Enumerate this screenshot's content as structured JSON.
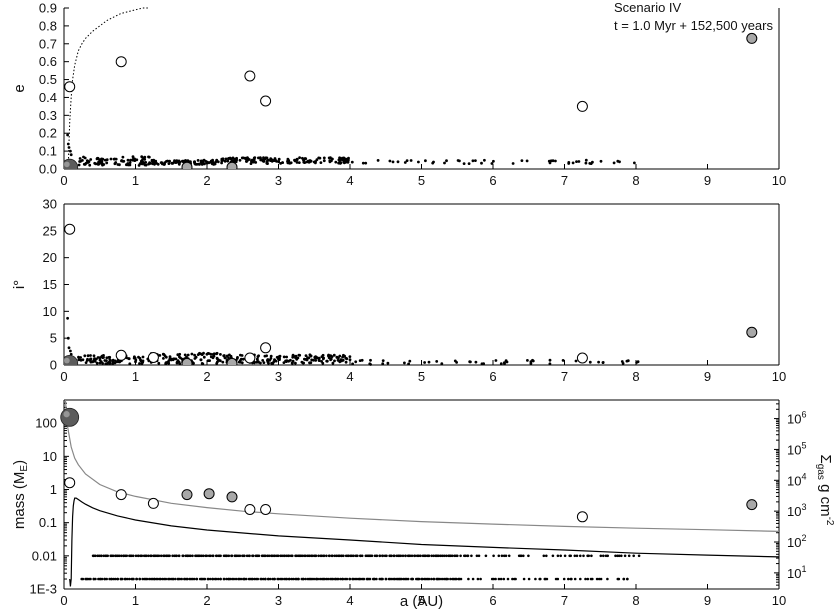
{
  "annotation": {
    "line1": "Scenario IV",
    "line2": "t = 1.0 Myr + 152,500 years"
  },
  "colors": {
    "axis": "#000000",
    "open_marker_fill": "#ffffff",
    "grey_marker_fill": "#a8a8a8",
    "dots": "#000000",
    "sigma_curve": "#888888",
    "mass_curve": "#000000"
  },
  "chart_data": [
    {
      "id": "e-panel",
      "type": "scatter",
      "ylabel": "e",
      "xlim": [
        0,
        10
      ],
      "ylim": [
        0,
        0.9
      ],
      "xticks": [
        0,
        1,
        2,
        3,
        4,
        5,
        6,
        7,
        8,
        9,
        10
      ],
      "yticks": [
        "0.0",
        "0.1",
        "0.2",
        "0.3",
        "0.4",
        "0.5",
        "0.6",
        "0.7",
        "0.8",
        "0.9"
      ],
      "ytick_values": [
        0,
        0.1,
        0.2,
        0.3,
        0.4,
        0.5,
        0.6,
        0.7,
        0.8,
        0.9
      ],
      "dotted_curve": {
        "x": [
          0.06,
          0.065,
          0.07,
          0.08,
          0.09,
          0.1,
          0.12,
          0.15,
          0.2,
          0.25,
          0.3,
          0.4,
          0.5,
          0.6,
          0.7,
          0.8,
          0.9,
          1.0,
          1.1,
          1.2
        ],
        "y": [
          0.0,
          0.08,
          0.15,
          0.26,
          0.33,
          0.4,
          0.5,
          0.58,
          0.66,
          0.7,
          0.73,
          0.77,
          0.8,
          0.83,
          0.85,
          0.87,
          0.88,
          0.89,
          0.9,
          0.9
        ]
      },
      "open_bodies": [
        {
          "x": 0.08,
          "y": 0.46
        },
        {
          "x": 0.8,
          "y": 0.6
        },
        {
          "x": 2.6,
          "y": 0.52
        },
        {
          "x": 2.82,
          "y": 0.38
        },
        {
          "x": 7.25,
          "y": 0.35
        }
      ],
      "grey_bodies": [
        {
          "x": 9.62,
          "y": 0.73
        },
        {
          "x": 1.72,
          "y": 0.01
        },
        {
          "x": 2.35,
          "y": 0.01
        }
      ],
      "central_body": {
        "x": 0.08,
        "y": 0.01
      },
      "planetesimal_swarm": {
        "segments": [
          {
            "x_from": 0.2,
            "x_to": 1.2,
            "y_from": 0.02,
            "y_to": 0.07
          },
          {
            "x_from": 1.2,
            "x_to": 2.2,
            "y_from": 0.025,
            "y_to": 0.05
          },
          {
            "x_from": 2.2,
            "x_to": 4.0,
            "y_from": 0.03,
            "y_to": 0.065
          },
          {
            "x_from": 4.0,
            "x_to": 8.1,
            "y_from": 0.03,
            "y_to": 0.05
          }
        ],
        "inner_scatter": {
          "x": [
            0.05,
            0.06,
            0.07,
            0.09,
            0.1
          ],
          "y": [
            0.19,
            0.14,
            0.12,
            0.1,
            0.08
          ]
        }
      }
    },
    {
      "id": "i-panel",
      "type": "scatter",
      "ylabel": "i°",
      "xlim": [
        0,
        10
      ],
      "ylim": [
        0,
        30
      ],
      "xticks": [
        0,
        1,
        2,
        3,
        4,
        5,
        6,
        7,
        8,
        9,
        10
      ],
      "yticks": [
        "0",
        "5",
        "10",
        "15",
        "20",
        "25",
        "30"
      ],
      "ytick_values": [
        0,
        5,
        10,
        15,
        20,
        25,
        30
      ],
      "open_bodies": [
        {
          "x": 0.08,
          "y": 25.3
        },
        {
          "x": 0.8,
          "y": 1.8
        },
        {
          "x": 1.25,
          "y": 1.4
        },
        {
          "x": 2.6,
          "y": 1.3
        },
        {
          "x": 2.82,
          "y": 3.2
        },
        {
          "x": 7.25,
          "y": 1.3
        }
      ],
      "grey_bodies": [
        {
          "x": 9.62,
          "y": 6.1
        },
        {
          "x": 1.72,
          "y": 0.3
        },
        {
          "x": 2.35,
          "y": 0.3
        }
      ],
      "central_body": {
        "x": 0.08,
        "y": 0.3
      },
      "planetesimal_swarm": {
        "segments": [
          {
            "x_from": 0.2,
            "x_to": 1.2,
            "y_from": 0.2,
            "y_to": 1.8
          },
          {
            "x_from": 1.2,
            "x_to": 2.2,
            "y_from": 0.2,
            "y_to": 2.2
          },
          {
            "x_from": 2.2,
            "x_to": 4.0,
            "y_from": 0.3,
            "y_to": 1.9
          },
          {
            "x_from": 4.0,
            "x_to": 8.1,
            "y_from": 0.1,
            "y_to": 0.9
          }
        ],
        "inner_scatter": {
          "x": [
            0.05,
            0.06,
            0.07,
            0.09,
            0.1
          ],
          "y": [
            8.7,
            5.0,
            3.2,
            2.6,
            2.0
          ]
        }
      }
    },
    {
      "id": "mass-panel",
      "type": "scatter",
      "xlabel": "a (AU)",
      "ylabel": "mass (M",
      "ylabel_sub": "E",
      "ylabel_end": ")",
      "y_scale": "log",
      "xlim": [
        0,
        10
      ],
      "ylim": [
        0.001,
        500
      ],
      "xticks": [
        0,
        1,
        2,
        3,
        4,
        5,
        6,
        7,
        8,
        9,
        10
      ],
      "yticks": [
        "1E-3",
        "0.01",
        "0.1",
        "1",
        "10",
        "100"
      ],
      "ytick_values": [
        0.001,
        0.01,
        0.1,
        1,
        10,
        100
      ],
      "right_axis": {
        "label_main": "Σ",
        "label_sub": "gas",
        "label_tail": " g cm",
        "label_sup": "-2",
        "scale": "log",
        "ylim": [
          3,
          4000000
        ],
        "tick_bases": [
          "10",
          "10",
          "10",
          "10",
          "10",
          "10"
        ],
        "tick_exponents": [
          "1",
          "2",
          "3",
          "4",
          "5",
          "6"
        ],
        "tick_values": [
          10,
          100,
          1000,
          10000,
          100000,
          1000000
        ]
      },
      "sigma_gas_curve": {
        "note_units": "g cm^-2",
        "x": [
          0.02,
          0.05,
          0.1,
          0.15,
          0.2,
          0.3,
          0.5,
          0.75,
          1,
          1.5,
          2,
          2.5,
          3,
          4,
          5,
          6,
          7,
          8,
          9,
          10
        ],
        "y": [
          4000000,
          540000,
          120000,
          52000,
          32000,
          16000,
          7300,
          4200,
          3000,
          1800,
          1300,
          1000,
          820,
          590,
          460,
          380,
          320,
          280,
          250,
          220
        ]
      },
      "mass_curve": {
        "x": [
          0.08,
          0.09,
          0.1,
          0.11,
          0.12,
          0.13,
          0.14,
          0.15,
          0.17,
          0.2,
          0.25,
          0.3,
          0.4,
          0.5,
          0.75,
          1,
          1.5,
          2,
          3,
          4,
          5,
          6,
          7,
          8,
          9,
          10
        ],
        "y": [
          0.002,
          0.0012,
          0.002,
          0.03,
          0.15,
          0.32,
          0.45,
          0.55,
          0.55,
          0.5,
          0.42,
          0.36,
          0.28,
          0.23,
          0.16,
          0.12,
          0.08,
          0.06,
          0.04,
          0.03,
          0.022,
          0.018,
          0.015,
          0.012,
          0.0105,
          0.0093
        ]
      },
      "open_bodies": [
        {
          "x": 0.08,
          "y": 1.6
        },
        {
          "x": 0.8,
          "y": 0.7
        },
        {
          "x": 1.25,
          "y": 0.38
        },
        {
          "x": 2.6,
          "y": 0.25
        },
        {
          "x": 2.82,
          "y": 0.25
        },
        {
          "x": 7.25,
          "y": 0.15
        }
      ],
      "grey_bodies": [
        {
          "x": 1.72,
          "y": 0.7
        },
        {
          "x": 2.03,
          "y": 0.75
        },
        {
          "x": 2.35,
          "y": 0.6
        },
        {
          "x": 9.62,
          "y": 0.35
        }
      ],
      "central_body": {
        "x": 0.08,
        "y": 150
      },
      "planetesimal_rows": [
        {
          "y": 0.01,
          "x_from": 0.4,
          "x_to": 8.1
        },
        {
          "y": 0.002,
          "x_from": 0.25,
          "x_to": 8.0
        }
      ]
    }
  ]
}
